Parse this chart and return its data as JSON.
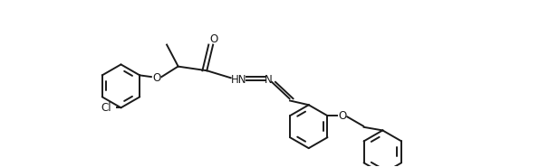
{
  "background_color": "#ffffff",
  "line_color": "#1a1a1a",
  "line_width": 1.4,
  "figsize": [
    6.17,
    1.85
  ],
  "dpi": 100,
  "xlim": [
    0.0,
    9.0
  ],
  "ylim": [
    0.0,
    3.2
  ]
}
